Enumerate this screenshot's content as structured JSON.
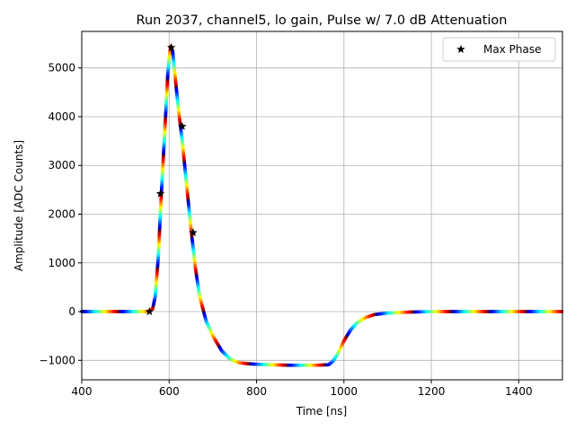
{
  "chart_data": {
    "type": "scatter",
    "title": "Run 2037, channel5, lo gain, Pulse w/ 7.0 dB Attenuation",
    "xlabel": "Time [ns]",
    "ylabel": "Amplitude [ADC Counts]",
    "xlim": [
      400,
      1500
    ],
    "ylim": [
      -1400,
      5750
    ],
    "xticks": [
      400,
      600,
      800,
      1000,
      1200,
      1400
    ],
    "yticks": [
      -1000,
      0,
      1000,
      2000,
      3000,
      4000,
      5000
    ],
    "xtick_labels": [
      "400",
      "600",
      "800",
      "1000",
      "1200",
      "1400"
    ],
    "ytick_labels": [
      "−1000",
      "0",
      "1000",
      "2000",
      "3000",
      "4000",
      "5000"
    ],
    "grid": true,
    "legend_position": "top-right",
    "pulse_curve": {
      "style": "dense colored dots, jet colormap cycling by phase",
      "x": [
        400,
        550,
        562,
        568,
        575,
        582,
        590,
        597,
        603,
        608,
        615,
        622,
        630,
        640,
        650,
        660,
        670,
        685,
        700,
        720,
        740,
        760,
        780,
        800,
        830,
        870,
        900,
        940,
        965,
        975,
        985,
        1000,
        1015,
        1030,
        1050,
        1070,
        1100,
        1150,
        1200,
        1300,
        1500
      ],
      "y": [
        0,
        0,
        50,
        300,
        1100,
        2400,
        3700,
        4900,
        5450,
        5350,
        4700,
        4100,
        3500,
        2600,
        1700,
        900,
        300,
        -200,
        -500,
        -800,
        -980,
        -1050,
        -1070,
        -1080,
        -1090,
        -1100,
        -1100,
        -1100,
        -1090,
        -1020,
        -880,
        -600,
        -380,
        -230,
        -120,
        -60,
        -30,
        -10,
        0,
        0,
        0
      ]
    },
    "series": [
      {
        "name": "Max Phase",
        "marker": "star",
        "color": "#000000",
        "x": [
          555,
          580,
          605,
          630,
          655
        ],
        "y": [
          0,
          2420,
          5420,
          3800,
          1620
        ]
      }
    ]
  }
}
